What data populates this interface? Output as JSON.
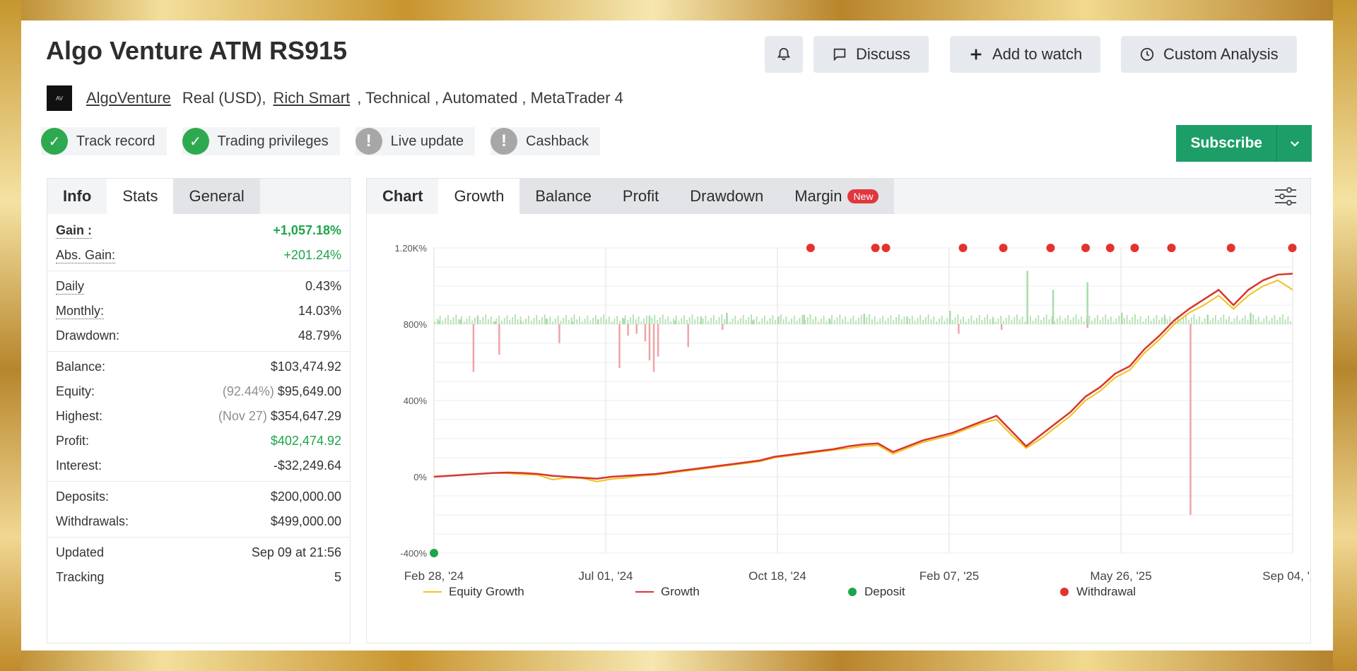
{
  "header": {
    "title": "Algo Venture ATM RS915",
    "discuss": "Discuss",
    "add_watch": "Add to watch",
    "custom_analysis": "Custom Analysis",
    "bell_icon": "bell-icon"
  },
  "subline": {
    "author": "AlgoVenture",
    "account": "Real (USD),",
    "broker": "Rich Smart",
    "rest": ", Technical , Automated , MetaTrader 4"
  },
  "badges": [
    "Track record",
    "Trading privileges",
    "Live update",
    "Cashback"
  ],
  "subscribe": "Subscribe",
  "stats": {
    "tabs": [
      "Info",
      "Stats",
      "General"
    ],
    "gain_label": "Gain :",
    "gain": "+1,057.18%",
    "abs_label": "Abs. Gain:",
    "abs": "+201.24%",
    "daily_label": "Daily",
    "daily": "0.43%",
    "monthly_label": "Monthly:",
    "monthly": "14.03%",
    "drawdown_label": "Drawdown:",
    "drawdown": "48.79%",
    "balance_label": "Balance:",
    "balance": "$103,474.92",
    "equity_label": "Equity:",
    "equity_pct": "(92.44%)",
    "equity": "$95,649.00",
    "highest_label": "Highest:",
    "highest_date": "(Nov 27)",
    "highest": "$354,647.29",
    "profit_label": "Profit:",
    "profit": "$402,474.92",
    "interest_label": "Interest:",
    "interest": "-$32,249.64",
    "deposits_label": "Deposits:",
    "deposits": "$200,000.00",
    "withdrawals_label": "Withdrawals:",
    "withdrawals": "$499,000.00",
    "updated_label": "Updated",
    "updated": "Sep 09 at 21:56",
    "tracking_label": "Tracking",
    "tracking": "5"
  },
  "chart_tabs": [
    "Chart",
    "Growth",
    "Balance",
    "Profit",
    "Drawdown",
    "Margin"
  ],
  "new_badge": "New",
  "chart_data": {
    "type": "line",
    "x_ticks": [
      "Feb 28, '24",
      "Jul 01, '24",
      "Oct 18, '24",
      "Feb 07, '25",
      "May 26, '25",
      "Sep 04, '25"
    ],
    "y_ticks": [
      "1.20K%",
      "800%",
      "400%",
      "0%",
      "-400%"
    ],
    "ylim": [
      -400,
      1200
    ],
    "series": [
      {
        "name": "Equity Growth",
        "color": "#f2c21b",
        "values": [
          0,
          5,
          10,
          15,
          20,
          18,
          12,
          10,
          -15,
          -5,
          -8,
          -25,
          -12,
          -5,
          5,
          10,
          20,
          30,
          40,
          50,
          60,
          70,
          80,
          100,
          110,
          120,
          130,
          140,
          150,
          160,
          165,
          120,
          150,
          180,
          200,
          220,
          250,
          280,
          300,
          220,
          150,
          200,
          260,
          320,
          400,
          450,
          520,
          560,
          650,
          720,
          800,
          860,
          900,
          950,
          880,
          950,
          1000,
          1030,
          980
        ]
      },
      {
        "name": "Growth",
        "color": "#d8352f",
        "values": [
          0,
          5,
          10,
          15,
          20,
          22,
          20,
          15,
          5,
          0,
          -5,
          -10,
          0,
          5,
          10,
          15,
          25,
          35,
          45,
          55,
          65,
          75,
          85,
          105,
          115,
          125,
          135,
          145,
          160,
          170,
          175,
          130,
          160,
          190,
          210,
          230,
          260,
          290,
          320,
          240,
          160,
          220,
          280,
          340,
          420,
          470,
          540,
          580,
          670,
          740,
          820,
          880,
          930,
          980,
          900,
          980,
          1030,
          1060,
          1065
        ]
      },
      {
        "name": "Deposit",
        "color": "#1ea44b"
      },
      {
        "name": "Withdrawal",
        "color": "#e3332f"
      }
    ],
    "deposit_points": [
      {
        "x": 0,
        "y": -400
      }
    ],
    "withdrawal_x": [
      0.215,
      0.252,
      0.256,
      0.302,
      0.327,
      0.352,
      0.373,
      0.388,
      0.403,
      0.425,
      0.461,
      0.497
    ],
    "withdrawal_y": 1200,
    "bars": {
      "baseline": 800,
      "up": [
        [
          0.005,
          20
        ],
        [
          0.03,
          25
        ],
        [
          0.05,
          40
        ],
        [
          0.07,
          15
        ],
        [
          0.1,
          20
        ],
        [
          0.13,
          30
        ],
        [
          0.16,
          15
        ],
        [
          0.19,
          25
        ],
        [
          0.22,
          30
        ],
        [
          0.25,
          45
        ],
        [
          0.28,
          20
        ],
        [
          0.31,
          40
        ],
        [
          0.34,
          60
        ],
        [
          0.37,
          20
        ],
        [
          0.4,
          40
        ],
        [
          0.43,
          50
        ],
        [
          0.46,
          25
        ],
        [
          0.5,
          55
        ],
        [
          0.55,
          40
        ],
        [
          0.6,
          70
        ],
        [
          0.65,
          30
        ],
        [
          0.69,
          280
        ],
        [
          0.72,
          180
        ],
        [
          0.76,
          220
        ],
        [
          0.8,
          60
        ],
        [
          0.85,
          40
        ],
        [
          0.9,
          50
        ],
        [
          0.95,
          60
        ]
      ],
      "down": [
        [
          0.045,
          250
        ],
        [
          0.075,
          160
        ],
        [
          0.145,
          100
        ],
        [
          0.215,
          230
        ],
        [
          0.225,
          60
        ],
        [
          0.235,
          50
        ],
        [
          0.245,
          90
        ],
        [
          0.25,
          190
        ],
        [
          0.255,
          250
        ],
        [
          0.26,
          170
        ],
        [
          0.295,
          120
        ],
        [
          0.335,
          30
        ],
        [
          0.61,
          50
        ],
        [
          0.66,
          30
        ],
        [
          0.76,
          20
        ],
        [
          0.88,
          1000
        ]
      ]
    }
  }
}
